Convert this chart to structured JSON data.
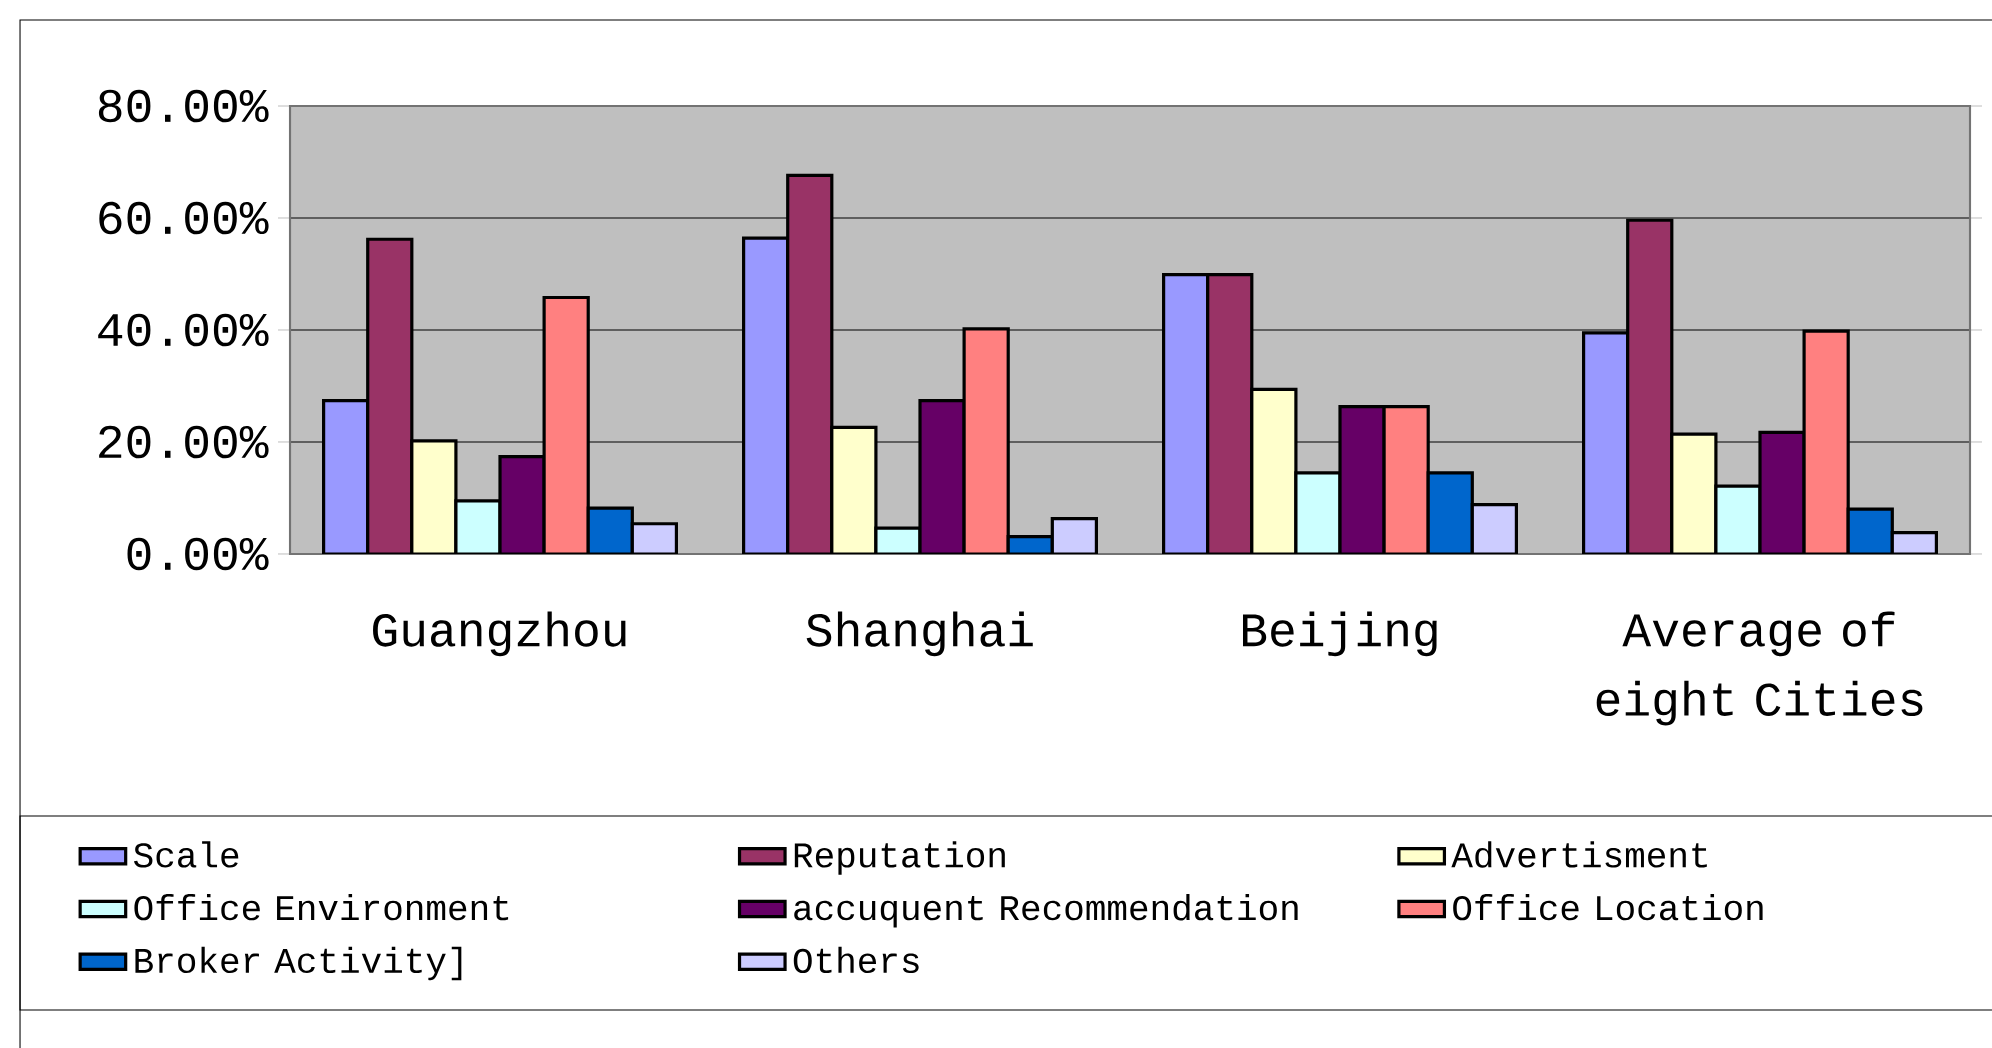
{
  "chart_data": {
    "type": "bar",
    "categories": [
      "Guangzhou",
      "Shanghai",
      "Beijing",
      "Average of eight Cities"
    ],
    "series": [
      {
        "name": "Scale",
        "color": "#9999ff",
        "values": [
          27.4,
          56.4,
          49.9,
          39.5
        ]
      },
      {
        "name": "Reputation",
        "color": "#993366",
        "values": [
          56.2,
          67.6,
          49.9,
          59.6
        ]
      },
      {
        "name": "Advertisment",
        "color": "#ffffcc",
        "values": [
          20.2,
          22.6,
          29.4,
          21.4
        ]
      },
      {
        "name": "Office Environment",
        "color": "#ccffff",
        "values": [
          9.5,
          4.6,
          14.5,
          12.1
        ]
      },
      {
        "name": "accuquent Recommendation",
        "color": "#660066",
        "values": [
          17.4,
          27.4,
          26.3,
          21.7
        ]
      },
      {
        "name": "Office Location",
        "color": "#ff8080",
        "values": [
          45.8,
          40.2,
          26.3,
          39.8
        ]
      },
      {
        "name": "Broker Activity]",
        "color": "#0066cc",
        "values": [
          8.2,
          3.1,
          14.5,
          8.0
        ]
      },
      {
        "name": "Others",
        "color": "#ccccff",
        "values": [
          5.4,
          6.3,
          8.8,
          3.8
        ]
      }
    ],
    "ylim": [
      0,
      80
    ],
    "yticks": [
      {
        "value": 0,
        "label": "0.00%"
      },
      {
        "value": 20,
        "label": "20.00%"
      },
      {
        "value": 40,
        "label": "40.00%"
      },
      {
        "value": 60,
        "label": "60.00%"
      },
      {
        "value": 80,
        "label": "80.00%"
      }
    ],
    "grid": "y",
    "legend": "bottom"
  }
}
